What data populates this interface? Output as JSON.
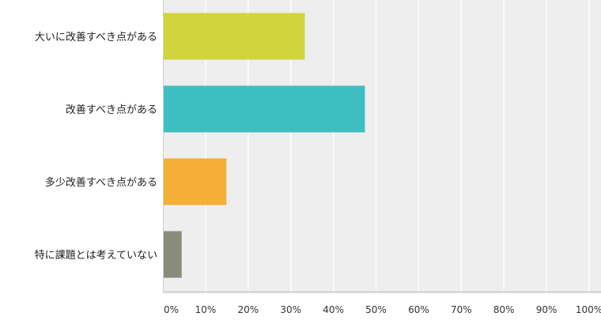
{
  "chart_data": {
    "type": "bar",
    "orientation": "horizontal",
    "categories": [
      "大いに改善すべき点がある",
      "改善すべき点がある",
      "多少改善すべき点がある",
      "特に課題とは考えていない"
    ],
    "values": [
      33.3,
      47.4,
      14.9,
      4.4
    ],
    "colors": [
      "#d1d43c",
      "#3dbfc1",
      "#f5ae37",
      "#8b8b7c"
    ],
    "xlim": [
      0,
      100
    ],
    "x_ticks": [
      "0%",
      "10%",
      "20%",
      "30%",
      "40%",
      "50%",
      "60%",
      "70%",
      "80%",
      "90%",
      "100%"
    ],
    "grid": true,
    "title": "",
    "xlabel": "",
    "ylabel": ""
  }
}
